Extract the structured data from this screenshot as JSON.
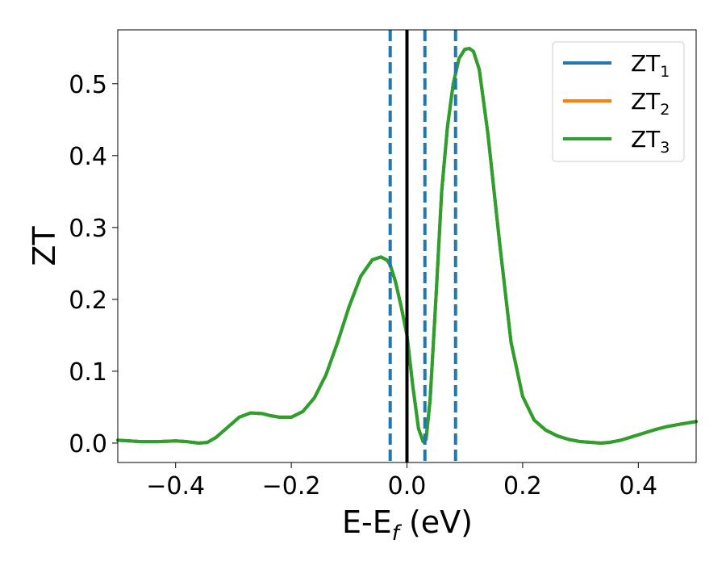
{
  "chart_data": {
    "type": "line",
    "title": "",
    "xlabel": "E-E",
    "xlabel_sub": "f",
    "xlabel_suffix": " (eV)",
    "ylabel": "ZT",
    "xlim": [
      -0.5,
      0.5
    ],
    "ylim": [
      -0.027,
      0.575
    ],
    "x_ticks": [
      -0.4,
      -0.2,
      0.0,
      0.2,
      0.4
    ],
    "x_tick_labels": [
      "−0.4",
      "−0.2",
      "0.0",
      "0.2",
      "0.4"
    ],
    "y_ticks": [
      0.0,
      0.1,
      0.2,
      0.3,
      0.4,
      0.5
    ],
    "y_tick_labels": [
      "0.0",
      "0.1",
      "0.2",
      "0.3",
      "0.4",
      "0.5"
    ],
    "grid": false,
    "legend_position": "top-right",
    "vertical_lines": [
      {
        "x": 0.0,
        "style": "solid",
        "color": "#000000"
      },
      {
        "x": -0.029,
        "style": "dashed",
        "color": "#1f77b4"
      },
      {
        "x": 0.031,
        "style": "dashed",
        "color": "#1f77b4"
      },
      {
        "x": 0.084,
        "style": "dashed",
        "color": "#1f77b4"
      }
    ],
    "series": [
      {
        "name": "ZT",
        "name_sub": "1",
        "color": "#1f77b4",
        "x": [
          -0.5,
          -0.46,
          -0.43,
          -0.4,
          -0.38,
          -0.36,
          -0.345,
          -0.33,
          -0.31,
          -0.29,
          -0.27,
          -0.25,
          -0.235,
          -0.22,
          -0.2,
          -0.18,
          -0.16,
          -0.14,
          -0.12,
          -0.1,
          -0.08,
          -0.06,
          -0.045,
          -0.035,
          -0.029,
          -0.02,
          -0.01,
          0.0,
          0.01,
          0.02,
          0.028,
          0.033,
          0.04,
          0.05,
          0.06,
          0.07,
          0.08,
          0.09,
          0.1,
          0.108,
          0.115,
          0.125,
          0.14,
          0.16,
          0.18,
          0.2,
          0.22,
          0.24,
          0.26,
          0.28,
          0.3,
          0.32,
          0.335,
          0.35,
          0.37,
          0.39,
          0.41,
          0.43,
          0.45,
          0.47,
          0.5
        ],
        "y": [
          0.004,
          0.002,
          0.002,
          0.003,
          0.002,
          0.0,
          0.001,
          0.008,
          0.022,
          0.036,
          0.042,
          0.041,
          0.038,
          0.036,
          0.036,
          0.044,
          0.063,
          0.095,
          0.14,
          0.19,
          0.232,
          0.255,
          0.259,
          0.255,
          0.248,
          0.225,
          0.19,
          0.15,
          0.08,
          0.02,
          0.002,
          0.005,
          0.06,
          0.2,
          0.35,
          0.44,
          0.5,
          0.535,
          0.548,
          0.549,
          0.545,
          0.52,
          0.43,
          0.28,
          0.14,
          0.065,
          0.032,
          0.018,
          0.01,
          0.005,
          0.002,
          0.001,
          0.0,
          0.001,
          0.004,
          0.009,
          0.014,
          0.019,
          0.023,
          0.026,
          0.03
        ]
      },
      {
        "name": "ZT",
        "name_sub": "2",
        "color": "#ff7f0e",
        "x": [
          -0.5,
          -0.46,
          -0.43,
          -0.4,
          -0.38,
          -0.36,
          -0.345,
          -0.33,
          -0.31,
          -0.29,
          -0.27,
          -0.25,
          -0.235,
          -0.22,
          -0.2,
          -0.18,
          -0.16,
          -0.14,
          -0.12,
          -0.1,
          -0.08,
          -0.06,
          -0.045,
          -0.035,
          -0.029,
          -0.02,
          -0.01,
          0.0,
          0.01,
          0.02,
          0.028,
          0.033,
          0.04,
          0.05,
          0.06,
          0.07,
          0.08,
          0.09,
          0.1,
          0.108,
          0.115,
          0.125,
          0.14,
          0.16,
          0.18,
          0.2,
          0.22,
          0.24,
          0.26,
          0.28,
          0.3,
          0.32,
          0.335,
          0.35,
          0.37,
          0.39,
          0.41,
          0.43,
          0.45,
          0.47,
          0.5
        ],
        "y": [
          0.004,
          0.002,
          0.002,
          0.003,
          0.002,
          0.0,
          0.001,
          0.008,
          0.022,
          0.036,
          0.042,
          0.041,
          0.038,
          0.036,
          0.036,
          0.044,
          0.063,
          0.095,
          0.14,
          0.19,
          0.232,
          0.255,
          0.259,
          0.255,
          0.248,
          0.225,
          0.19,
          0.15,
          0.08,
          0.02,
          0.002,
          0.005,
          0.06,
          0.2,
          0.35,
          0.44,
          0.5,
          0.535,
          0.548,
          0.549,
          0.545,
          0.52,
          0.43,
          0.28,
          0.14,
          0.065,
          0.032,
          0.018,
          0.01,
          0.005,
          0.002,
          0.001,
          0.0,
          0.001,
          0.004,
          0.009,
          0.014,
          0.019,
          0.023,
          0.026,
          0.03
        ]
      },
      {
        "name": "ZT",
        "name_sub": "3",
        "color": "#2ca02c",
        "x": [
          -0.5,
          -0.46,
          -0.43,
          -0.4,
          -0.38,
          -0.36,
          -0.345,
          -0.33,
          -0.31,
          -0.29,
          -0.27,
          -0.25,
          -0.235,
          -0.22,
          -0.2,
          -0.18,
          -0.16,
          -0.14,
          -0.12,
          -0.1,
          -0.08,
          -0.06,
          -0.045,
          -0.035,
          -0.029,
          -0.02,
          -0.01,
          0.0,
          0.01,
          0.02,
          0.028,
          0.033,
          0.04,
          0.05,
          0.06,
          0.07,
          0.08,
          0.09,
          0.1,
          0.108,
          0.115,
          0.125,
          0.14,
          0.16,
          0.18,
          0.2,
          0.22,
          0.24,
          0.26,
          0.28,
          0.3,
          0.32,
          0.335,
          0.35,
          0.37,
          0.39,
          0.41,
          0.43,
          0.45,
          0.47,
          0.5
        ],
        "y": [
          0.004,
          0.002,
          0.002,
          0.003,
          0.002,
          0.0,
          0.001,
          0.008,
          0.022,
          0.036,
          0.042,
          0.041,
          0.038,
          0.036,
          0.036,
          0.044,
          0.063,
          0.095,
          0.14,
          0.19,
          0.232,
          0.255,
          0.259,
          0.255,
          0.248,
          0.225,
          0.19,
          0.15,
          0.08,
          0.02,
          0.002,
          0.005,
          0.06,
          0.2,
          0.35,
          0.44,
          0.5,
          0.535,
          0.548,
          0.549,
          0.545,
          0.52,
          0.43,
          0.28,
          0.14,
          0.065,
          0.032,
          0.018,
          0.01,
          0.005,
          0.002,
          0.001,
          0.0,
          0.001,
          0.004,
          0.009,
          0.014,
          0.019,
          0.023,
          0.026,
          0.03
        ]
      }
    ]
  }
}
